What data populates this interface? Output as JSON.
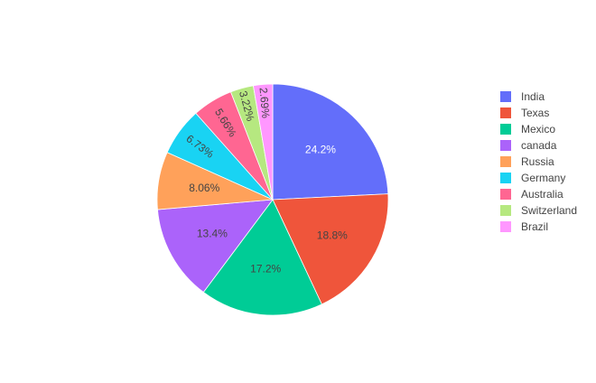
{
  "chart_data": {
    "type": "pie",
    "labels": [
      "India",
      "Texas",
      "Mexico",
      "canada",
      "Russia",
      "Germany",
      "Australia",
      "Switzerland",
      "Brazil"
    ],
    "values": [
      24.2,
      18.8,
      17.2,
      13.4,
      8.06,
      6.73,
      5.66,
      3.22,
      2.69
    ],
    "value_labels": [
      "24.2%",
      "18.8%",
      "17.2%",
      "13.4%",
      "8.06%",
      "6.73%",
      "5.66%",
      "3.22%",
      "2.69%"
    ],
    "colors": [
      "#636efa",
      "#ef553b",
      "#00cc96",
      "#ab63fa",
      "#ffa15a",
      "#19d3f3",
      "#ff6692",
      "#b6e880",
      "#ff97ff"
    ],
    "label_colors": [
      "#ffffff",
      "#444444",
      "#444444",
      "#444444",
      "#444444",
      "#444444",
      "#444444",
      "#444444",
      "#444444"
    ],
    "direction": "clockwise",
    "start": "top",
    "legend_position": "right"
  }
}
